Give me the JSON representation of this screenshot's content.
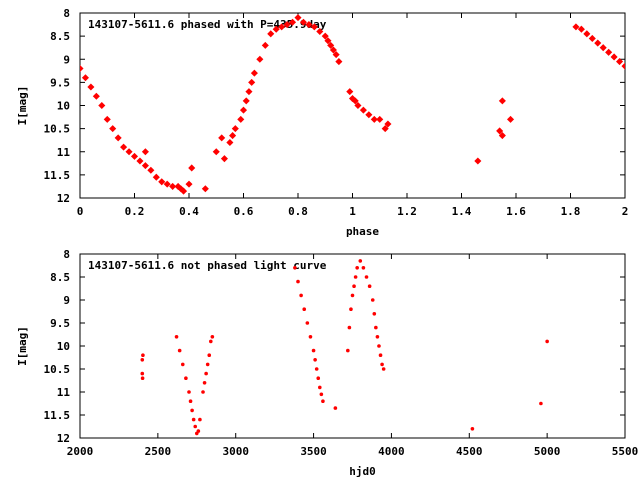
{
  "chart_data": [
    {
      "type": "scatter",
      "title": "143107-5611.6 phased with P=435.9day",
      "xlabel": "phase",
      "ylabel": "I[mag]",
      "xlim": [
        0,
        2
      ],
      "ylim": [
        12,
        8
      ],
      "y_inverted": true,
      "xticks": [
        0,
        0.2,
        0.4,
        0.6,
        0.8,
        1,
        1.2,
        1.4,
        1.6,
        1.8,
        2
      ],
      "xtick_labels": [
        "0",
        "0.2",
        "0.4",
        "0.6",
        "0.8",
        "1",
        "1.2",
        "1.4",
        "1.6",
        "1.8",
        "2"
      ],
      "yticks": [
        8,
        8.5,
        9,
        9.5,
        10,
        10.5,
        11,
        11.5,
        12
      ],
      "ytick_labels": [
        "8",
        "8.5",
        "9",
        "9.5",
        "10",
        "10.5",
        "11",
        "11.5",
        "12"
      ],
      "marker_color": "#ff0000",
      "series": [
        {
          "x": [
            0.0,
            0.02,
            0.04,
            0.06,
            0.08,
            0.1,
            0.12,
            0.14,
            0.16,
            0.18,
            0.2,
            0.22,
            0.24,
            0.24,
            0.26,
            0.28,
            0.3,
            0.32,
            0.34,
            0.36,
            0.37,
            0.38,
            0.4,
            0.41,
            0.46,
            0.5,
            0.52,
            0.53,
            0.55,
            0.56,
            0.57,
            0.59,
            0.6,
            0.61,
            0.62,
            0.63,
            0.64,
            0.66,
            0.68,
            0.7,
            0.72,
            0.74,
            0.76,
            0.78,
            0.8,
            0.82,
            0.84,
            0.86,
            0.88,
            0.9,
            0.91,
            0.92,
            0.93,
            0.94,
            0.95,
            0.99,
            1.0,
            1.01,
            1.02,
            1.04,
            1.06,
            1.08,
            1.1,
            1.12,
            1.13,
            1.46,
            1.54,
            1.55,
            1.55,
            1.58,
            1.82,
            1.84,
            1.86,
            1.88,
            1.9,
            1.92,
            1.94,
            1.96,
            1.98,
            2.0
          ],
          "y": [
            9.2,
            9.4,
            9.6,
            9.8,
            10.0,
            10.3,
            10.5,
            10.7,
            10.9,
            11.0,
            11.1,
            11.2,
            11.3,
            11.0,
            11.4,
            11.55,
            11.65,
            11.7,
            11.75,
            11.75,
            11.8,
            11.85,
            11.7,
            11.35,
            11.8,
            11.0,
            10.7,
            11.15,
            10.8,
            10.65,
            10.5,
            10.3,
            10.1,
            9.9,
            9.7,
            9.5,
            9.3,
            9.0,
            8.7,
            8.45,
            8.35,
            8.3,
            8.25,
            8.2,
            8.1,
            8.2,
            8.25,
            8.3,
            8.4,
            8.5,
            8.6,
            8.7,
            8.8,
            8.9,
            9.05,
            9.7,
            9.85,
            9.9,
            10.0,
            10.1,
            10.2,
            10.3,
            10.3,
            10.5,
            10.4,
            11.2,
            10.55,
            10.65,
            9.9,
            10.3,
            8.3,
            8.35,
            8.45,
            8.55,
            8.65,
            8.75,
            8.85,
            8.95,
            9.05,
            9.15
          ]
        }
      ]
    },
    {
      "type": "scatter",
      "title": "143107-5611.6 not phased light curve",
      "xlabel": "hjd0",
      "ylabel": "I[mag]",
      "xlim": [
        2000,
        5500
      ],
      "ylim": [
        12,
        8
      ],
      "y_inverted": true,
      "xticks": [
        2000,
        2500,
        3000,
        3500,
        4000,
        4500,
        5000,
        5500
      ],
      "xtick_labels": [
        "2000",
        "2500",
        "3000",
        "3500",
        "4000",
        "4500",
        "5000",
        "5500"
      ],
      "yticks": [
        8,
        8.5,
        9,
        9.5,
        10,
        10.5,
        11,
        11.5,
        12
      ],
      "ytick_labels": [
        "8",
        "8.5",
        "9",
        "9.5",
        "10",
        "10.5",
        "11",
        "11.5",
        "12"
      ],
      "marker_color": "#ff0000",
      "series": [
        {
          "x": [
            2400,
            2400,
            2402,
            2404,
            2620,
            2640,
            2660,
            2680,
            2700,
            2710,
            2720,
            2730,
            2740,
            2750,
            2760,
            2770,
            2790,
            2800,
            2810,
            2820,
            2830,
            2840,
            2850,
            3380,
            3400,
            3420,
            3440,
            3460,
            3480,
            3500,
            3510,
            3520,
            3530,
            3540,
            3550,
            3560,
            3640,
            3720,
            3730,
            3740,
            3750,
            3760,
            3770,
            3780,
            3800,
            3820,
            3840,
            3860,
            3880,
            3890,
            3900,
            3910,
            3920,
            3930,
            3940,
            3950,
            4520,
            4960,
            5000
          ],
          "y": [
            10.3,
            10.6,
            10.7,
            10.2,
            9.8,
            10.1,
            10.4,
            10.7,
            11.0,
            11.2,
            11.4,
            11.6,
            11.75,
            11.9,
            11.85,
            11.6,
            11.0,
            10.8,
            10.6,
            10.4,
            10.2,
            9.9,
            9.8,
            8.3,
            8.6,
            8.9,
            9.2,
            9.5,
            9.8,
            10.1,
            10.3,
            10.5,
            10.7,
            10.9,
            11.05,
            11.2,
            11.35,
            10.1,
            9.6,
            9.2,
            8.9,
            8.7,
            8.5,
            8.3,
            8.15,
            8.3,
            8.5,
            8.7,
            9.0,
            9.3,
            9.6,
            9.8,
            10.0,
            10.2,
            10.4,
            10.5,
            11.8,
            11.25,
            9.9
          ]
        }
      ]
    }
  ]
}
